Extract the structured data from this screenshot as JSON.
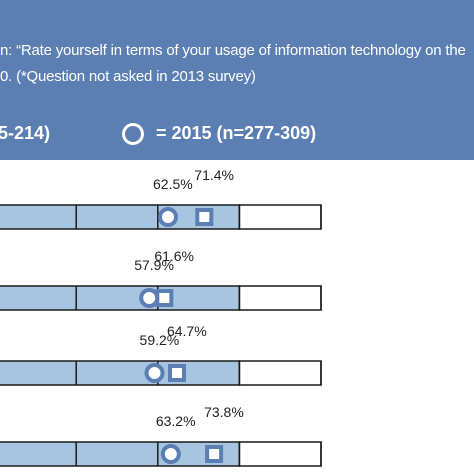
{
  "header": {
    "question_line1": "n: “Rate yourself in terms of your usage of information technology on the",
    "question_line2": "0. (*Question not asked in 2013 survey)",
    "legend_left": "5-214)",
    "legend_right": "= 2015 (n=277-309)"
  },
  "colors": {
    "header_bg": "#5b7fb3",
    "bar_fill": "#a7c5e0",
    "marker": "#5b7fb3",
    "grid": "#1a1a1a"
  },
  "chart_data": {
    "type": "dot",
    "rows": 4,
    "series": [
      {
        "name": "2015 (n=277-309)",
        "marker": "circle",
        "values": [
          62.5,
          57.9,
          59.2,
          63.2
        ],
        "labels": [
          "62.5%",
          "57.9%",
          "59.2%",
          "63.2%"
        ]
      },
      {
        "marker": "square",
        "values": [
          71.4,
          61.6,
          64.7,
          73.8
        ],
        "labels": [
          "71.4%",
          "61.6%",
          "64.7%",
          "73.8%"
        ]
      }
    ],
    "x_visible_range": [
      28,
      100
    ],
    "segment_boundaries": [
      40,
      60,
      80,
      100
    ]
  }
}
